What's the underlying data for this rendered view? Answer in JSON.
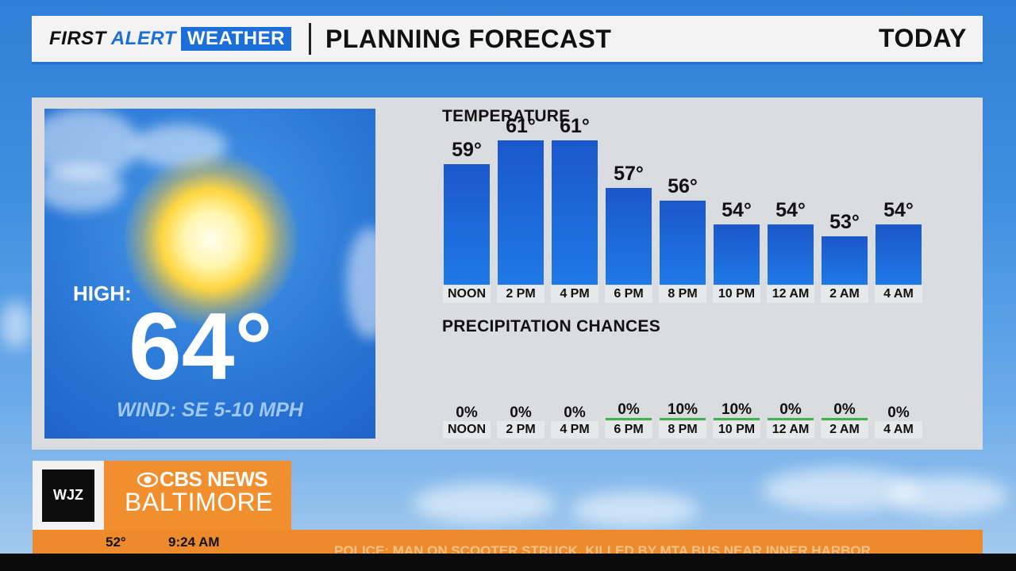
{
  "header": {
    "brand_first": "FIRST",
    "brand_alert": "ALERT",
    "brand_weather": "WEATHER",
    "title": "PLANNING FORECAST",
    "period": "TODAY"
  },
  "summary": {
    "high_label": "HIGH:",
    "high_value": "64°",
    "wind": "WIND: SE 5-10 MPH",
    "icon": "sun-icon"
  },
  "chart_data": [
    {
      "type": "bar",
      "title": "TEMPERATURE",
      "categories": [
        "NOON",
        "2 PM",
        "4 PM",
        "6 PM",
        "8 PM",
        "10 PM",
        "12 AM",
        "2 AM",
        "4 AM"
      ],
      "values": [
        59,
        61,
        61,
        57,
        56,
        54,
        54,
        53,
        54
      ],
      "value_labels": [
        "59°",
        "61°",
        "61°",
        "57°",
        "56°",
        "54°",
        "54°",
        "53°",
        "54°"
      ],
      "ylim": [
        49,
        61
      ],
      "grid": false,
      "bar_color": "#1e6ee0"
    },
    {
      "type": "table",
      "title": "PRECIPITATION CHANCES",
      "categories": [
        "NOON",
        "2 PM",
        "4 PM",
        "6 PM",
        "8 PM",
        "10 PM",
        "12 AM",
        "2 AM",
        "4 AM"
      ],
      "values": [
        0,
        0,
        0,
        0,
        10,
        10,
        0,
        0,
        0
      ],
      "value_labels": [
        "0%",
        "0%",
        "0%",
        "0%",
        "10%",
        "10%",
        "0%",
        "0%",
        "0%"
      ],
      "underline": [
        false,
        false,
        false,
        true,
        true,
        true,
        true,
        true,
        false
      ],
      "underline_color": "#3bb54a"
    }
  ],
  "station": {
    "call_letters": "WJZ",
    "network": "CBS NEWS",
    "city": "BALTIMORE",
    "accent_color": "#f18e2d"
  },
  "ticker": {
    "temperature": "52°",
    "time": "9:24 AM",
    "headline": "POLICE: MAN ON SCOOTER STRUCK, KILLED BY MTA BUS NEAR INNER HARBOR"
  }
}
